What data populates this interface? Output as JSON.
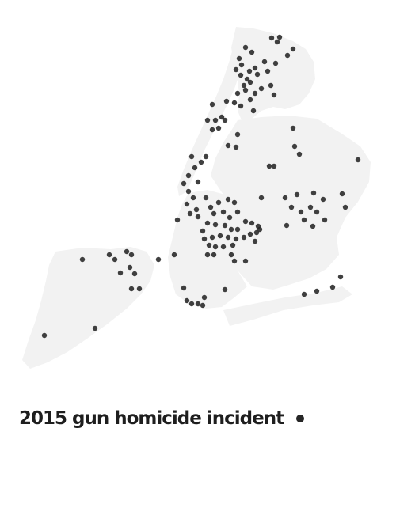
{
  "legend": {
    "label": "2015 gun homicide incident"
  },
  "colors": {
    "land": "#f2f2f2",
    "dot": "#262626",
    "text": "#1e1e1e",
    "background": "#ffffff"
  },
  "marker_icon": "filled-circle"
}
